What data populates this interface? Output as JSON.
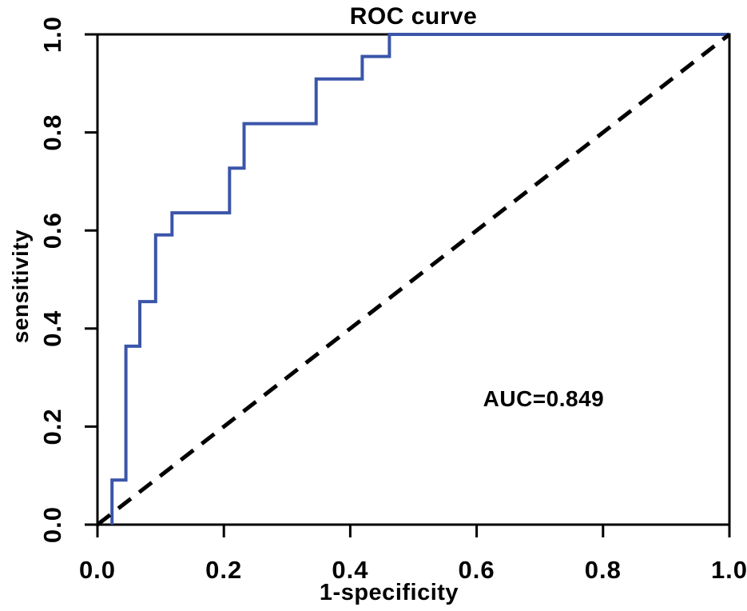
{
  "chart_data": {
    "type": "line",
    "title": "ROC curve",
    "xlabel": "1-specificity",
    "ylabel": "sensitivity",
    "xlim": [
      0,
      1
    ],
    "ylim": [
      0,
      1
    ],
    "grid": false,
    "legend": false,
    "axis_color": "#000000",
    "background_color": "#ffffff",
    "xtick_values": [
      0.0,
      0.2,
      0.4,
      0.6,
      0.8,
      1.0
    ],
    "xtick_labels": [
      "0.0",
      "0.2",
      "0.4",
      "0.6",
      "0.8",
      "1.0"
    ],
    "ytick_values": [
      0.0,
      0.2,
      0.4,
      0.6,
      0.8,
      1.0
    ],
    "ytick_labels": [
      "0.0",
      "0.2",
      "0.4",
      "0.6",
      "0.8",
      "1.0"
    ],
    "auc": 0.849,
    "annotations": [
      {
        "text": "AUC=0.849",
        "x": 0.706,
        "y": 0.256
      }
    ],
    "series": [
      {
        "name": "roc-step-curve",
        "style": "solid",
        "color": "#3b55a9",
        "line_width": 4,
        "points": [
          [
            0.023,
            0.0
          ],
          [
            0.023,
            0.091
          ],
          [
            0.045,
            0.091
          ],
          [
            0.045,
            0.364
          ],
          [
            0.067,
            0.364
          ],
          [
            0.067,
            0.455
          ],
          [
            0.092,
            0.455
          ],
          [
            0.092,
            0.591
          ],
          [
            0.118,
            0.591
          ],
          [
            0.118,
            0.636
          ],
          [
            0.209,
            0.636
          ],
          [
            0.209,
            0.727
          ],
          [
            0.232,
            0.727
          ],
          [
            0.232,
            0.818
          ],
          [
            0.346,
            0.818
          ],
          [
            0.346,
            0.909
          ],
          [
            0.419,
            0.909
          ],
          [
            0.419,
            0.955
          ],
          [
            0.462,
            0.955
          ],
          [
            0.462,
            1.0
          ],
          [
            1.0,
            1.0
          ]
        ]
      },
      {
        "name": "chance-diagonal",
        "style": "dashed",
        "color": "#000000",
        "line_width": 5,
        "points": [
          [
            0.0,
            0.0
          ],
          [
            1.0,
            1.0
          ]
        ]
      }
    ]
  }
}
